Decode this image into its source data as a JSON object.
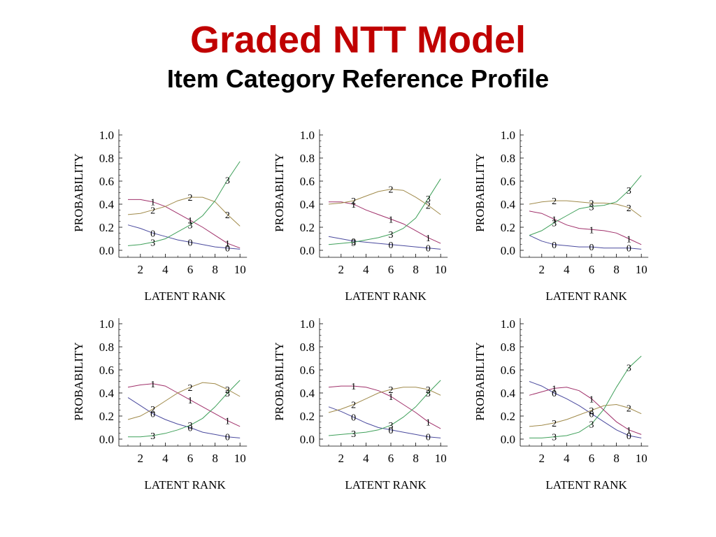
{
  "slide": {
    "title": "Graded NTT Model",
    "subtitle": "Item Category Reference Profile"
  },
  "colors": {
    "title": "#c00000",
    "0": "#4a4a9e",
    "1": "#a0306a",
    "2": "#a08a4a",
    "3": "#3fa05a"
  },
  "chart_data": [
    {
      "type": "line",
      "xlabel": "LATENT RANK",
      "ylabel": "PROBABILITY",
      "xlim": [
        0.5,
        10.5
      ],
      "ylim": [
        0,
        1.05
      ],
      "xticks": [
        "2",
        "4",
        "6",
        "8",
        "10"
      ],
      "yticks": [
        "0.0",
        "0.2",
        "0.4",
        "0.6",
        "0.8",
        "1.0"
      ],
      "x": [
        1,
        2,
        3,
        4,
        5,
        6,
        7,
        8,
        9,
        10
      ],
      "series": [
        {
          "name": "0",
          "values": [
            0.22,
            0.19,
            0.15,
            0.12,
            0.09,
            0.07,
            0.05,
            0.03,
            0.02,
            0.01
          ],
          "label_x": [
            3,
            6,
            9
          ]
        },
        {
          "name": "1",
          "values": [
            0.44,
            0.44,
            0.42,
            0.38,
            0.32,
            0.26,
            0.2,
            0.13,
            0.06,
            0.02
          ],
          "label_x": [
            3,
            6,
            9
          ]
        },
        {
          "name": "2",
          "values": [
            0.31,
            0.32,
            0.35,
            0.38,
            0.43,
            0.46,
            0.46,
            0.42,
            0.31,
            0.21
          ],
          "label_x": [
            3,
            6,
            9
          ]
        },
        {
          "name": "3",
          "values": [
            0.04,
            0.05,
            0.07,
            0.1,
            0.16,
            0.22,
            0.3,
            0.43,
            0.61,
            0.77
          ],
          "label_x": [
            3,
            6,
            9
          ]
        }
      ]
    },
    {
      "type": "line",
      "xlabel": "LATENT RANK",
      "ylabel": "PROBABILITY",
      "xlim": [
        0.5,
        10.5
      ],
      "ylim": [
        0,
        1.05
      ],
      "xticks": [
        "2",
        "4",
        "6",
        "8",
        "10"
      ],
      "yticks": [
        "0.0",
        "0.2",
        "0.4",
        "0.6",
        "0.8",
        "1.0"
      ],
      "x": [
        1,
        2,
        3,
        4,
        5,
        6,
        7,
        8,
        9,
        10
      ],
      "series": [
        {
          "name": "0",
          "values": [
            0.12,
            0.1,
            0.08,
            0.07,
            0.06,
            0.05,
            0.04,
            0.03,
            0.02,
            0.01
          ],
          "label_x": [
            3,
            6,
            9
          ]
        },
        {
          "name": "1",
          "values": [
            0.42,
            0.42,
            0.4,
            0.35,
            0.31,
            0.27,
            0.23,
            0.17,
            0.11,
            0.06
          ],
          "label_x": [
            3,
            6,
            9
          ]
        },
        {
          "name": "2",
          "values": [
            0.4,
            0.41,
            0.43,
            0.47,
            0.51,
            0.53,
            0.52,
            0.46,
            0.39,
            0.31
          ],
          "label_x": [
            3,
            6,
            9
          ]
        },
        {
          "name": "3",
          "values": [
            0.05,
            0.06,
            0.07,
            0.09,
            0.11,
            0.14,
            0.19,
            0.28,
            0.45,
            0.62
          ],
          "label_x": [
            3,
            6,
            9
          ]
        }
      ]
    },
    {
      "type": "line",
      "xlabel": "LATENT RANK",
      "ylabel": "PROBABILITY",
      "xlim": [
        0.5,
        10.5
      ],
      "ylim": [
        0,
        1.05
      ],
      "xticks": [
        "2",
        "4",
        "6",
        "8",
        "10"
      ],
      "yticks": [
        "0.0",
        "0.2",
        "0.4",
        "0.6",
        "0.8",
        "1.0"
      ],
      "x": [
        1,
        2,
        3,
        4,
        5,
        6,
        7,
        8,
        9,
        10
      ],
      "series": [
        {
          "name": "0",
          "values": [
            0.13,
            0.08,
            0.05,
            0.04,
            0.03,
            0.03,
            0.02,
            0.02,
            0.02,
            0.01
          ],
          "label_x": [
            3,
            6,
            9
          ]
        },
        {
          "name": "1",
          "values": [
            0.34,
            0.32,
            0.27,
            0.22,
            0.19,
            0.18,
            0.17,
            0.15,
            0.1,
            0.05
          ],
          "label_x": [
            3,
            6,
            9
          ]
        },
        {
          "name": "2",
          "values": [
            0.4,
            0.42,
            0.43,
            0.43,
            0.42,
            0.41,
            0.41,
            0.4,
            0.37,
            0.29
          ],
          "label_x": [
            3,
            6,
            9
          ]
        },
        {
          "name": "3",
          "values": [
            0.13,
            0.17,
            0.24,
            0.3,
            0.36,
            0.38,
            0.39,
            0.42,
            0.52,
            0.65
          ],
          "label_x": [
            3,
            6,
            9
          ]
        }
      ]
    },
    {
      "type": "line",
      "xlabel": "LATENT RANK",
      "ylabel": "PROBABILITY",
      "xlim": [
        0.5,
        10.5
      ],
      "ylim": [
        0,
        1.05
      ],
      "xticks": [
        "2",
        "4",
        "6",
        "8",
        "10"
      ],
      "yticks": [
        "0.0",
        "0.2",
        "0.4",
        "0.6",
        "0.8",
        "1.0"
      ],
      "x": [
        1,
        2,
        3,
        4,
        5,
        6,
        7,
        8,
        9,
        10
      ],
      "series": [
        {
          "name": "0",
          "values": [
            0.36,
            0.29,
            0.22,
            0.17,
            0.13,
            0.1,
            0.06,
            0.04,
            0.02,
            0.01
          ],
          "label_x": [
            3,
            6,
            9
          ]
        },
        {
          "name": "1",
          "values": [
            0.45,
            0.47,
            0.48,
            0.46,
            0.4,
            0.34,
            0.28,
            0.22,
            0.16,
            0.11
          ],
          "label_x": [
            3,
            6,
            9
          ]
        },
        {
          "name": "2",
          "values": [
            0.17,
            0.2,
            0.26,
            0.33,
            0.4,
            0.45,
            0.49,
            0.48,
            0.43,
            0.37
          ],
          "label_x": [
            3,
            6,
            9
          ]
        },
        {
          "name": "3",
          "values": [
            0.02,
            0.02,
            0.03,
            0.05,
            0.08,
            0.12,
            0.18,
            0.28,
            0.4,
            0.51
          ],
          "label_x": [
            3,
            6,
            9
          ]
        }
      ]
    },
    {
      "type": "line",
      "xlabel": "LATENT RANK",
      "ylabel": "PROBABILITY",
      "xlim": [
        0.5,
        10.5
      ],
      "ylim": [
        0,
        1.05
      ],
      "xticks": [
        "2",
        "4",
        "6",
        "8",
        "10"
      ],
      "yticks": [
        "0.0",
        "0.2",
        "0.4",
        "0.6",
        "0.8",
        "1.0"
      ],
      "x": [
        1,
        2,
        3,
        4,
        5,
        6,
        7,
        8,
        9,
        10
      ],
      "series": [
        {
          "name": "0",
          "values": [
            0.28,
            0.24,
            0.19,
            0.14,
            0.1,
            0.08,
            0.06,
            0.04,
            0.02,
            0.01
          ],
          "label_x": [
            3,
            6,
            9
          ]
        },
        {
          "name": "1",
          "values": [
            0.45,
            0.46,
            0.46,
            0.45,
            0.42,
            0.37,
            0.3,
            0.23,
            0.15,
            0.09
          ],
          "label_x": [
            3,
            6,
            9
          ]
        },
        {
          "name": "2",
          "values": [
            0.23,
            0.26,
            0.3,
            0.35,
            0.4,
            0.43,
            0.45,
            0.45,
            0.43,
            0.38
          ],
          "label_x": [
            3,
            6,
            9
          ]
        },
        {
          "name": "3",
          "values": [
            0.03,
            0.04,
            0.05,
            0.06,
            0.08,
            0.12,
            0.19,
            0.28,
            0.4,
            0.51
          ],
          "label_x": [
            3,
            6,
            9
          ]
        }
      ]
    },
    {
      "type": "line",
      "xlabel": "LATENT RANK",
      "ylabel": "PROBABILITY",
      "xlim": [
        0.5,
        10.5
      ],
      "ylim": [
        0,
        1.05
      ],
      "xticks": [
        "2",
        "4",
        "6",
        "8",
        "10"
      ],
      "yticks": [
        "0.0",
        "0.2",
        "0.4",
        "0.6",
        "0.8",
        "1.0"
      ],
      "x": [
        1,
        2,
        3,
        4,
        5,
        6,
        7,
        8,
        9,
        10
      ],
      "series": [
        {
          "name": "0",
          "values": [
            0.5,
            0.46,
            0.4,
            0.35,
            0.29,
            0.22,
            0.15,
            0.08,
            0.03,
            0.01
          ],
          "label_x": [
            3,
            6,
            9
          ]
        },
        {
          "name": "1",
          "values": [
            0.38,
            0.41,
            0.44,
            0.45,
            0.42,
            0.35,
            0.25,
            0.15,
            0.08,
            0.04
          ],
          "label_x": [
            3,
            6,
            9
          ]
        },
        {
          "name": "2",
          "values": [
            0.11,
            0.12,
            0.14,
            0.17,
            0.21,
            0.25,
            0.29,
            0.3,
            0.27,
            0.22
          ],
          "label_x": [
            3,
            6,
            9
          ]
        },
        {
          "name": "3",
          "values": [
            0.01,
            0.01,
            0.02,
            0.03,
            0.06,
            0.13,
            0.26,
            0.45,
            0.62,
            0.72
          ],
          "label_x": [
            3,
            6,
            9
          ]
        }
      ]
    }
  ]
}
